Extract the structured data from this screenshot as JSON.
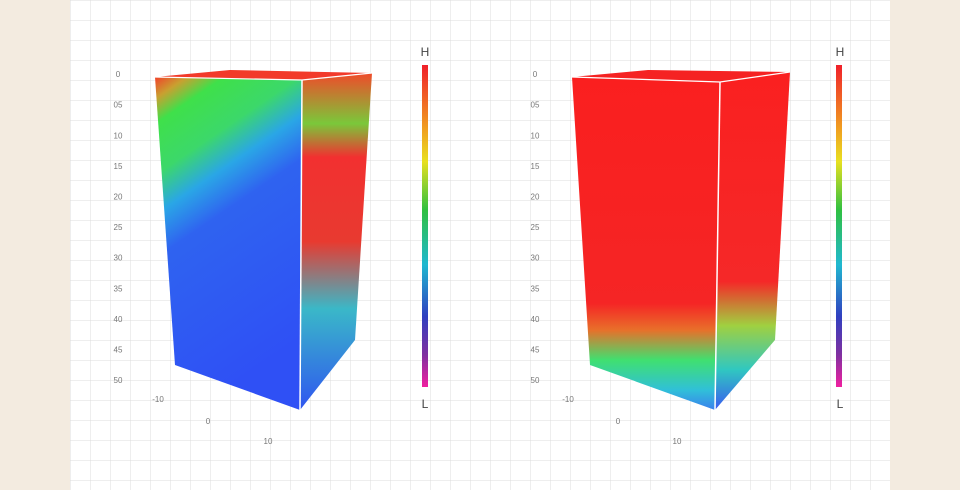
{
  "panels": [
    {
      "depth_labels": [
        "0",
        "05",
        "10",
        "15",
        "20",
        "25",
        "30",
        "35",
        "40",
        "45",
        "50"
      ],
      "width_labels": [
        "-10",
        "0",
        "10"
      ],
      "legend": {
        "high": "H",
        "low": "L"
      }
    },
    {
      "depth_labels": [
        "0",
        "05",
        "10",
        "15",
        "20",
        "25",
        "30",
        "35",
        "40",
        "45",
        "50"
      ],
      "width_labels": [
        "-10",
        "0",
        "10"
      ],
      "legend": {
        "high": "H",
        "low": "L"
      }
    }
  ]
}
